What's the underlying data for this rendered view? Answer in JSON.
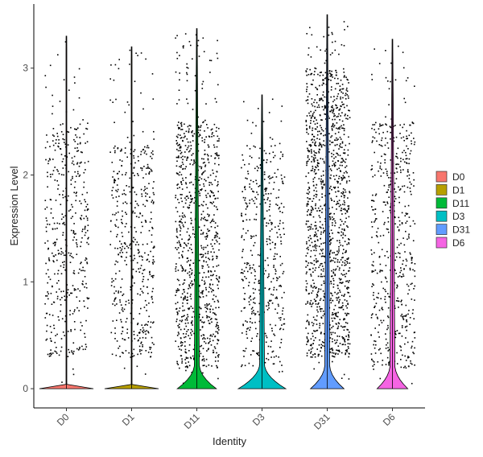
{
  "chart_data": {
    "type": "violin",
    "xlabel": "Identity",
    "ylabel": "Expression Level",
    "ylim": [
      -0.18,
      3.6
    ],
    "yticks": [
      0,
      1,
      2,
      3
    ],
    "grid": false,
    "legend_position": "right",
    "categories": [
      "D0",
      "D1",
      "D11",
      "D3",
      "D31",
      "D6"
    ],
    "series": [
      {
        "name": "D0",
        "color": "#F8766D",
        "max": 3.3,
        "zero_fraction": 0.97,
        "dense_range": [
          0.3,
          2.5
        ],
        "points": 450
      },
      {
        "name": "D1",
        "color": "#B79F00",
        "max": 3.2,
        "zero_fraction": 0.97,
        "dense_range": [
          0.3,
          2.3
        ],
        "points": 480
      },
      {
        "name": "D11",
        "color": "#00BA38",
        "max": 3.37,
        "zero_fraction": 0.7,
        "dense_range": [
          0.2,
          2.5
        ],
        "points": 950
      },
      {
        "name": "D3",
        "color": "#00BFC4",
        "max": 2.75,
        "zero_fraction": 0.85,
        "dense_range": [
          0.2,
          2.3
        ],
        "points": 450
      },
      {
        "name": "D31",
        "color": "#619CFF",
        "max": 3.5,
        "zero_fraction": 0.6,
        "dense_range": [
          0.3,
          3.0
        ],
        "points": 1300
      },
      {
        "name": "D6",
        "color": "#F564E3",
        "max": 3.27,
        "zero_fraction": 0.55,
        "dense_range": [
          0.2,
          2.5
        ],
        "points": 560
      }
    ]
  }
}
